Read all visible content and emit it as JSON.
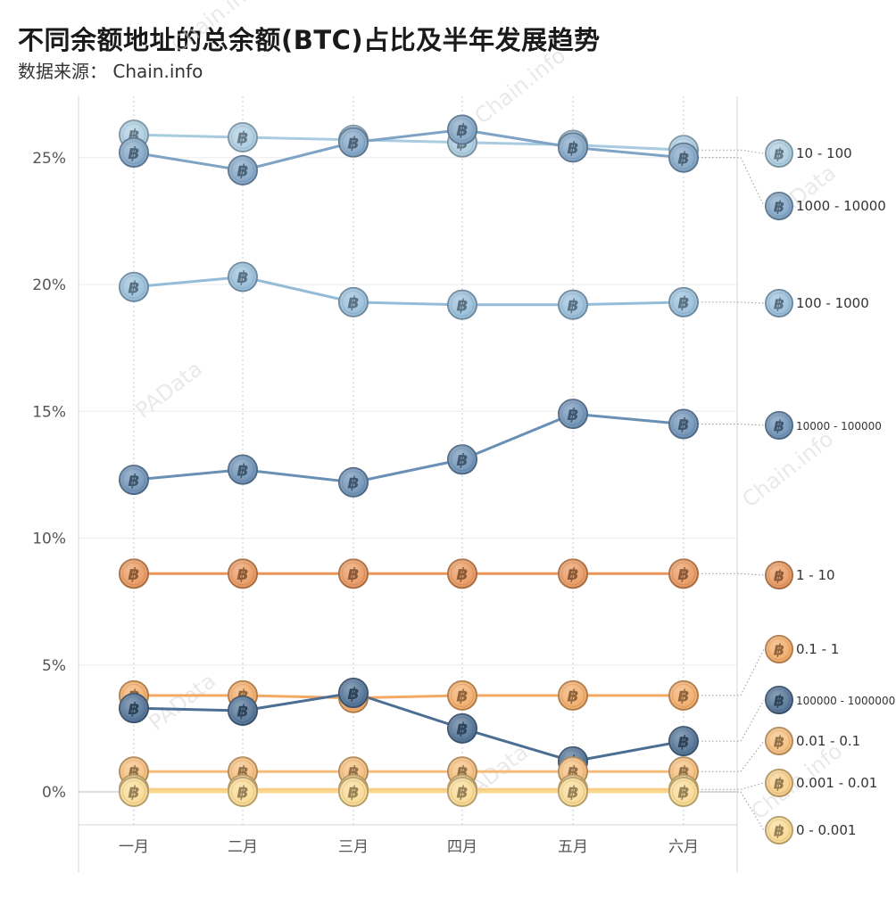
{
  "header": {
    "title": "不同余额地址的总余额(BTC)占比及半年发展趋势",
    "subtitle": "数据来源： Chain.info"
  },
  "watermarks": [
    "Chain.info",
    "PAData"
  ],
  "chart_data": {
    "type": "line",
    "title": "不同余额地址的总余额(BTC)占比及半年发展趋势",
    "xlabel": "",
    "ylabel": "",
    "categories": [
      "一月",
      "二月",
      "三月",
      "四月",
      "五月",
      "六月"
    ],
    "yticks": [
      "0%",
      "5%",
      "10%",
      "15%",
      "20%",
      "25%"
    ],
    "ylim": [
      -1.3,
      27.5
    ],
    "grid": true,
    "marker": "bitcoin-icon",
    "legend": "right, aligned to line ends",
    "series": [
      {
        "name": "10 - 100",
        "color": "#a9cbe0",
        "values": [
          25.9,
          25.8,
          25.7,
          25.6,
          25.5,
          25.3
        ]
      },
      {
        "name": "1000 - 10000",
        "color": "#7ea3c5",
        "values": [
          25.2,
          24.5,
          25.6,
          26.1,
          25.4,
          25.0
        ]
      },
      {
        "name": "100 - 1000",
        "color": "#94bcd9",
        "values": [
          19.9,
          20.3,
          19.3,
          19.2,
          19.2,
          19.3
        ]
      },
      {
        "name": "10000 - 100000",
        "color": "#6a8fb5",
        "values": [
          12.3,
          12.7,
          12.2,
          13.1,
          14.9,
          14.5
        ]
      },
      {
        "name": " 1 - 10",
        "color": "#e8955a",
        "values": [
          8.6,
          8.6,
          8.6,
          8.6,
          8.6,
          8.6
        ]
      },
      {
        "name": "0.1 - 1",
        "color": "#f2a963",
        "values": [
          3.8,
          3.8,
          3.7,
          3.8,
          3.8,
          3.8
        ]
      },
      {
        "name": "100000 - 1000000",
        "color": "#4c6e93",
        "values": [
          3.3,
          3.2,
          3.9,
          2.5,
          1.2,
          2.0
        ]
      },
      {
        "name": "0.01 - 0.1",
        "color": "#f5bc78",
        "values": [
          0.8,
          0.8,
          0.8,
          0.8,
          0.8,
          0.8
        ]
      },
      {
        "name": "0.001 - 0.01",
        "color": "#f8cd85",
        "values": [
          0.1,
          0.1,
          0.1,
          0.1,
          0.1,
          0.1
        ]
      },
      {
        "name": "0 - 0.001",
        "color": "#fad98f",
        "values": [
          0.0,
          0.0,
          0.0,
          0.0,
          0.0,
          0.0
        ]
      }
    ]
  }
}
